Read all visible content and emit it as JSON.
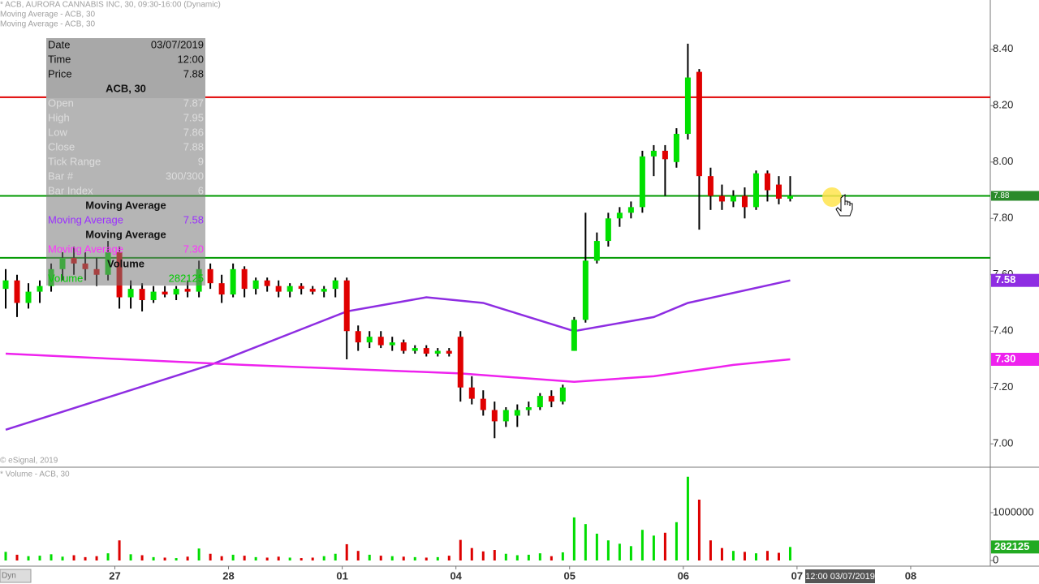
{
  "chart_data": [
    {
      "type": "candlestick",
      "title": "* ACB, AURORA CANNABIS INC, 30, 09:30-16:00 (Dynamic)",
      "legend": [
        "Moving Average - ACB, 30",
        "Moving Average - ACB, 30"
      ],
      "credit": "© eSignal, 2019",
      "up_color": "#00e000",
      "down_color": "#e00000",
      "xlim": [
        -0.5,
        86.6
      ],
      "xticks": [
        {
          "value": 9.6,
          "label": "27"
        },
        {
          "value": 19.6,
          "label": "28"
        },
        {
          "value": 29.6,
          "label": "01"
        },
        {
          "value": 39.6,
          "label": "04"
        },
        {
          "value": 49.6,
          "label": "05"
        },
        {
          "value": 59.6,
          "label": "06"
        },
        {
          "value": 69.6,
          "label": "07"
        },
        {
          "value": 79.6,
          "label": "08"
        }
      ],
      "ylim": [
        6.92,
        8.575
      ],
      "yticks": [
        {
          "value": 8.4,
          "label": "8.40"
        },
        {
          "value": 8.2,
          "label": "8.20"
        },
        {
          "value": 8.0,
          "label": "8.00"
        },
        {
          "value": 7.8,
          "label": "7.80"
        },
        {
          "value": 7.6,
          "label": "7.60"
        },
        {
          "value": 7.4,
          "label": "7.40"
        },
        {
          "value": 7.2,
          "label": "7.20"
        },
        {
          "value": 7.0,
          "label": "7.00"
        }
      ],
      "hlines": [
        {
          "value": 8.23,
          "color": "#e00000"
        },
        {
          "value": 7.88,
          "color": "#009900"
        },
        {
          "value": 7.66,
          "color": "#009900"
        }
      ],
      "last_price": {
        "value": 7.88,
        "label": "7.88"
      },
      "ohlc": [
        [
          7.55,
          7.62,
          7.48,
          7.58
        ],
        [
          7.58,
          7.6,
          7.45,
          7.5
        ],
        [
          7.5,
          7.57,
          7.48,
          7.54
        ],
        [
          7.54,
          7.58,
          7.5,
          7.56
        ],
        [
          7.56,
          7.64,
          7.54,
          7.62
        ],
        [
          7.62,
          7.68,
          7.58,
          7.66
        ],
        [
          7.66,
          7.7,
          7.6,
          7.64
        ],
        [
          7.64,
          7.68,
          7.58,
          7.62
        ],
        [
          7.62,
          7.66,
          7.56,
          7.6
        ],
        [
          7.6,
          7.72,
          7.58,
          7.68
        ],
        [
          7.68,
          7.7,
          7.48,
          7.52
        ],
        [
          7.52,
          7.58,
          7.48,
          7.55
        ],
        [
          7.55,
          7.57,
          7.47,
          7.51
        ],
        [
          7.51,
          7.56,
          7.5,
          7.54
        ],
        [
          7.54,
          7.56,
          7.52,
          7.53
        ],
        [
          7.53,
          7.56,
          7.51,
          7.55
        ],
        [
          7.55,
          7.58,
          7.52,
          7.54
        ],
        [
          7.54,
          7.65,
          7.52,
          7.62
        ],
        [
          7.62,
          7.64,
          7.55,
          7.57
        ],
        [
          7.57,
          7.6,
          7.5,
          7.53
        ],
        [
          7.53,
          7.64,
          7.52,
          7.62
        ],
        [
          7.62,
          7.63,
          7.52,
          7.55
        ],
        [
          7.55,
          7.59,
          7.53,
          7.58
        ],
        [
          7.58,
          7.59,
          7.54,
          7.56
        ],
        [
          7.56,
          7.58,
          7.52,
          7.54
        ],
        [
          7.54,
          7.57,
          7.52,
          7.56
        ],
        [
          7.56,
          7.57,
          7.53,
          7.55
        ],
        [
          7.55,
          7.56,
          7.53,
          7.54
        ],
        [
          7.54,
          7.56,
          7.52,
          7.55
        ],
        [
          7.55,
          7.59,
          7.52,
          7.58
        ],
        [
          7.58,
          7.59,
          7.3,
          7.4
        ],
        [
          7.4,
          7.42,
          7.33,
          7.36
        ],
        [
          7.36,
          7.4,
          7.34,
          7.38
        ],
        [
          7.38,
          7.4,
          7.34,
          7.35
        ],
        [
          7.35,
          7.38,
          7.33,
          7.36
        ],
        [
          7.36,
          7.37,
          7.32,
          7.33
        ],
        [
          7.33,
          7.35,
          7.32,
          7.34
        ],
        [
          7.34,
          7.35,
          7.31,
          7.32
        ],
        [
          7.32,
          7.34,
          7.31,
          7.33
        ],
        [
          7.33,
          7.34,
          7.31,
          7.32
        ],
        [
          7.38,
          7.4,
          7.15,
          7.2
        ],
        [
          7.2,
          7.24,
          7.14,
          7.16
        ],
        [
          7.16,
          7.19,
          7.1,
          7.12
        ],
        [
          7.12,
          7.15,
          7.02,
          7.08
        ],
        [
          7.08,
          7.13,
          7.06,
          7.12
        ],
        [
          7.1,
          7.14,
          7.06,
          7.12
        ],
        [
          7.12,
          7.15,
          7.1,
          7.13
        ],
        [
          7.13,
          7.18,
          7.12,
          7.17
        ],
        [
          7.17,
          7.19,
          7.13,
          7.15
        ],
        [
          7.15,
          7.21,
          7.14,
          7.2
        ],
        [
          7.33,
          7.45,
          7.33,
          7.44
        ],
        [
          7.44,
          7.82,
          7.43,
          7.65
        ],
        [
          7.65,
          7.75,
          7.64,
          7.72
        ],
        [
          7.72,
          7.82,
          7.7,
          7.8
        ],
        [
          7.8,
          7.84,
          7.77,
          7.82
        ],
        [
          7.82,
          7.86,
          7.8,
          7.84
        ],
        [
          7.84,
          8.04,
          7.82,
          8.02
        ],
        [
          8.02,
          8.06,
          7.95,
          8.04
        ],
        [
          8.04,
          8.06,
          7.88,
          8.01
        ],
        [
          8.0,
          8.12,
          7.98,
          8.1
        ],
        [
          8.1,
          8.42,
          8.08,
          8.3
        ],
        [
          8.32,
          8.33,
          7.76,
          7.95
        ],
        [
          7.95,
          7.98,
          7.83,
          7.88
        ],
        [
          7.88,
          7.92,
          7.83,
          7.86
        ],
        [
          7.86,
          7.9,
          7.84,
          7.88
        ],
        [
          7.88,
          7.91,
          7.8,
          7.84
        ],
        [
          7.84,
          7.97,
          7.83,
          7.96
        ],
        [
          7.96,
          7.97,
          7.86,
          7.9
        ],
        [
          7.92,
          7.95,
          7.85,
          7.87
        ],
        [
          7.87,
          7.95,
          7.86,
          7.88
        ]
      ],
      "series": [
        {
          "name": "Moving Average",
          "color": "#8e2de2",
          "x": [
            0,
            18,
            30,
            37,
            42,
            50,
            57,
            60,
            69
          ],
          "values": [
            7.05,
            7.28,
            7.47,
            7.52,
            7.5,
            7.4,
            7.45,
            7.5,
            7.58
          ],
          "end_label": "7.58"
        },
        {
          "name": "Moving Average",
          "color": "#ee22ee",
          "x": [
            0,
            21,
            40,
            50,
            57,
            64,
            69
          ],
          "values": [
            7.32,
            7.28,
            7.25,
            7.22,
            7.24,
            7.28,
            7.3
          ],
          "end_label": "7.30"
        }
      ]
    },
    {
      "type": "volume",
      "title": "* Volume - ACB, 30",
      "up_color": "#00dd00",
      "down_color": "#dd0000",
      "ylim": [
        0,
        1915000
      ],
      "yticks": [
        1000000,
        0
      ],
      "values": [
        180000,
        120000,
        90000,
        100000,
        130000,
        80000,
        110000,
        70000,
        90000,
        150000,
        420000,
        130000,
        110000,
        70000,
        60000,
        50000,
        80000,
        250000,
        140000,
        90000,
        120000,
        100000,
        70000,
        60000,
        80000,
        60000,
        50000,
        60000,
        90000,
        140000,
        340000,
        200000,
        120000,
        100000,
        90000,
        80000,
        70000,
        60000,
        70000,
        100000,
        430000,
        260000,
        190000,
        220000,
        140000,
        110000,
        120000,
        150000,
        90000,
        170000,
        900000,
        760000,
        560000,
        420000,
        350000,
        300000,
        640000,
        520000,
        580000,
        800000,
        1750000,
        1270000,
        420000,
        260000,
        200000,
        180000,
        150000,
        200000,
        160000,
        282125
      ]
    }
  ],
  "tooltip": {
    "rows": [
      [
        "Date",
        "03/07/2019"
      ],
      [
        "Time",
        "12:00"
      ],
      [
        "Price",
        "7.88"
      ]
    ],
    "section": "ACB, 30",
    "ohlc_rows": [
      [
        "Open",
        "7.87"
      ],
      [
        "High",
        "7.95"
      ],
      [
        "Low",
        "7.86"
      ],
      [
        "Close",
        "7.88"
      ],
      [
        "Tick Range",
        "9"
      ],
      [
        "Bar #",
        "300/300"
      ],
      [
        "Bar Index",
        "6"
      ]
    ],
    "studies": [
      {
        "title": "Moving Average",
        "name": "Moving Average",
        "value": "7.58",
        "color": "#9b30ff"
      },
      {
        "title": "Moving Average",
        "name": "Moving Average",
        "value": "7.30",
        "color": "#ff30ff"
      },
      {
        "title": "Volume",
        "name": "Volume",
        "value": "282125",
        "color": "#00cc00"
      }
    ]
  },
  "cursor_label": "12:00 03/07/2019",
  "corner_label": "Dyn"
}
